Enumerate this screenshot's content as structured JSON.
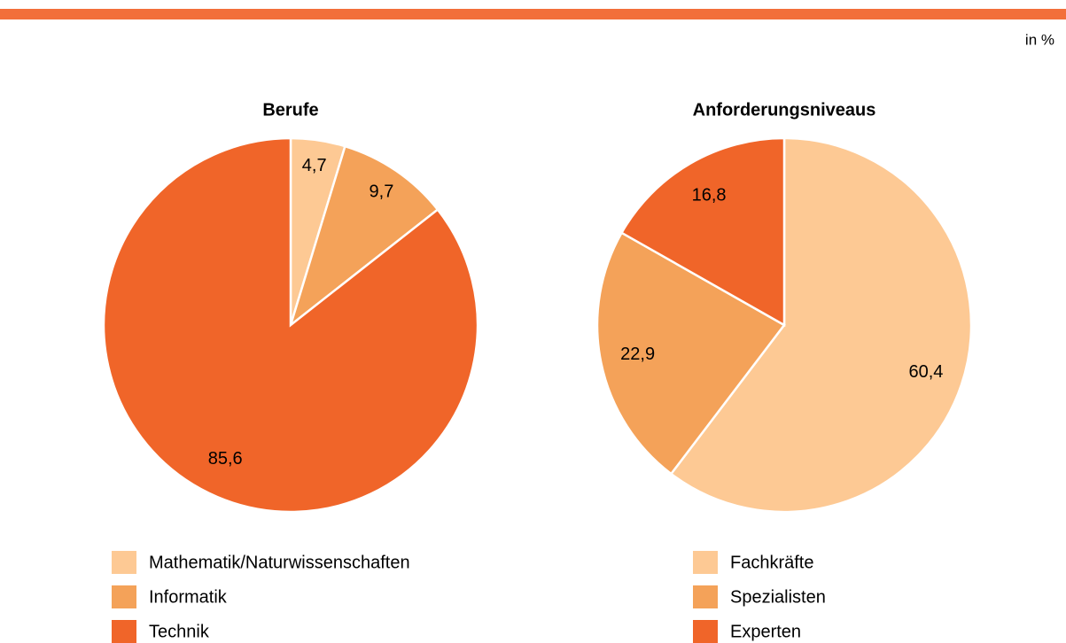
{
  "unit_note": "in %",
  "chart_data": [
    {
      "type": "pie",
      "title": "Berufe",
      "categories": [
        "Mathematik/Naturwissenschaften",
        "Informatik",
        "Technik"
      ],
      "values": [
        4.7,
        9.7,
        85.6
      ],
      "value_labels": [
        "4,7",
        "9,7",
        "85,6"
      ],
      "colors": [
        "#fdc994",
        "#f4a259",
        "#f06529"
      ]
    },
    {
      "type": "pie",
      "title": "Anforderungsniveaus",
      "categories": [
        "Fachkräfte",
        "Spezialisten",
        "Experten"
      ],
      "values": [
        60.4,
        22.9,
        16.8
      ],
      "value_labels": [
        "60,4",
        "22,9",
        "16,8"
      ],
      "colors": [
        "#fdc994",
        "#f4a259",
        "#f06529"
      ]
    }
  ]
}
